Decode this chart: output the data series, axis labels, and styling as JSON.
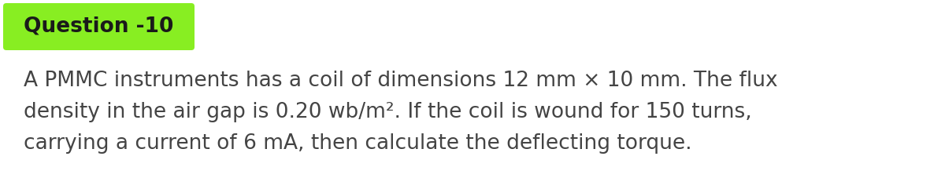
{
  "title": "Question -10",
  "title_bg_color": "#88EE22",
  "title_text_color": "#1a1a1a",
  "title_fontsize": 19,
  "body_text_line1": "A PMMC instruments has a coil of dimensions 12 mm × 10 mm. The flux",
  "body_text_line2": "density in the air gap is 0.20 wb/m². If the coil is wound for 150 turns,",
  "body_text_line3": "carrying a current of 6 mA, then calculate the deflecting torque.",
  "body_text_color": "#444444",
  "body_fontsize": 19,
  "bg_color": "#ffffff",
  "fig_width": 12.0,
  "fig_height": 2.41,
  "dpi": 100
}
